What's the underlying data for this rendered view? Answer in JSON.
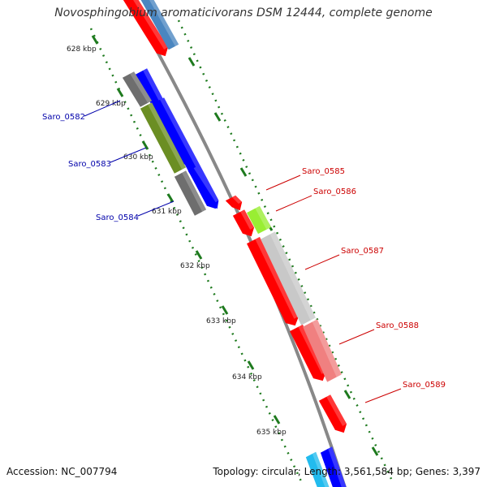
{
  "title": "Novosphingobium aromaticivorans DSM 12444, complete genome",
  "accession": "Accession: NC_007794",
  "summary": "Topology: circular; Length: 3,561,584 bp; Genes: 3,397",
  "colors": {
    "backbone": "#888888",
    "ticks": "#1e7a1e",
    "left_labels": "#0000aa",
    "right_labels": "#cc0000",
    "red": "#ff0000",
    "blue": "#0000ff",
    "steel_blue": "#4a86c0",
    "gray": "#6e6e6e",
    "olive": "#6b8e23",
    "light_gray": "#c8c8c8",
    "pink": "#f08080",
    "yellow_green": "#99ee33",
    "cyan": "#22bbee"
  },
  "kbp_labels": [
    "628 kbp",
    "629 kbp",
    "630 kbp",
    "631 kbp",
    "632 kbp",
    "633 kbp",
    "634 kbp",
    "635 kbp"
  ],
  "left_genes": [
    "Saro_0582",
    "Saro_0583",
    "Saro_0584"
  ],
  "right_genes": [
    "Saro_0585",
    "Saro_0586",
    "Saro_0587",
    "Saro_0588",
    "Saro_0589"
  ]
}
